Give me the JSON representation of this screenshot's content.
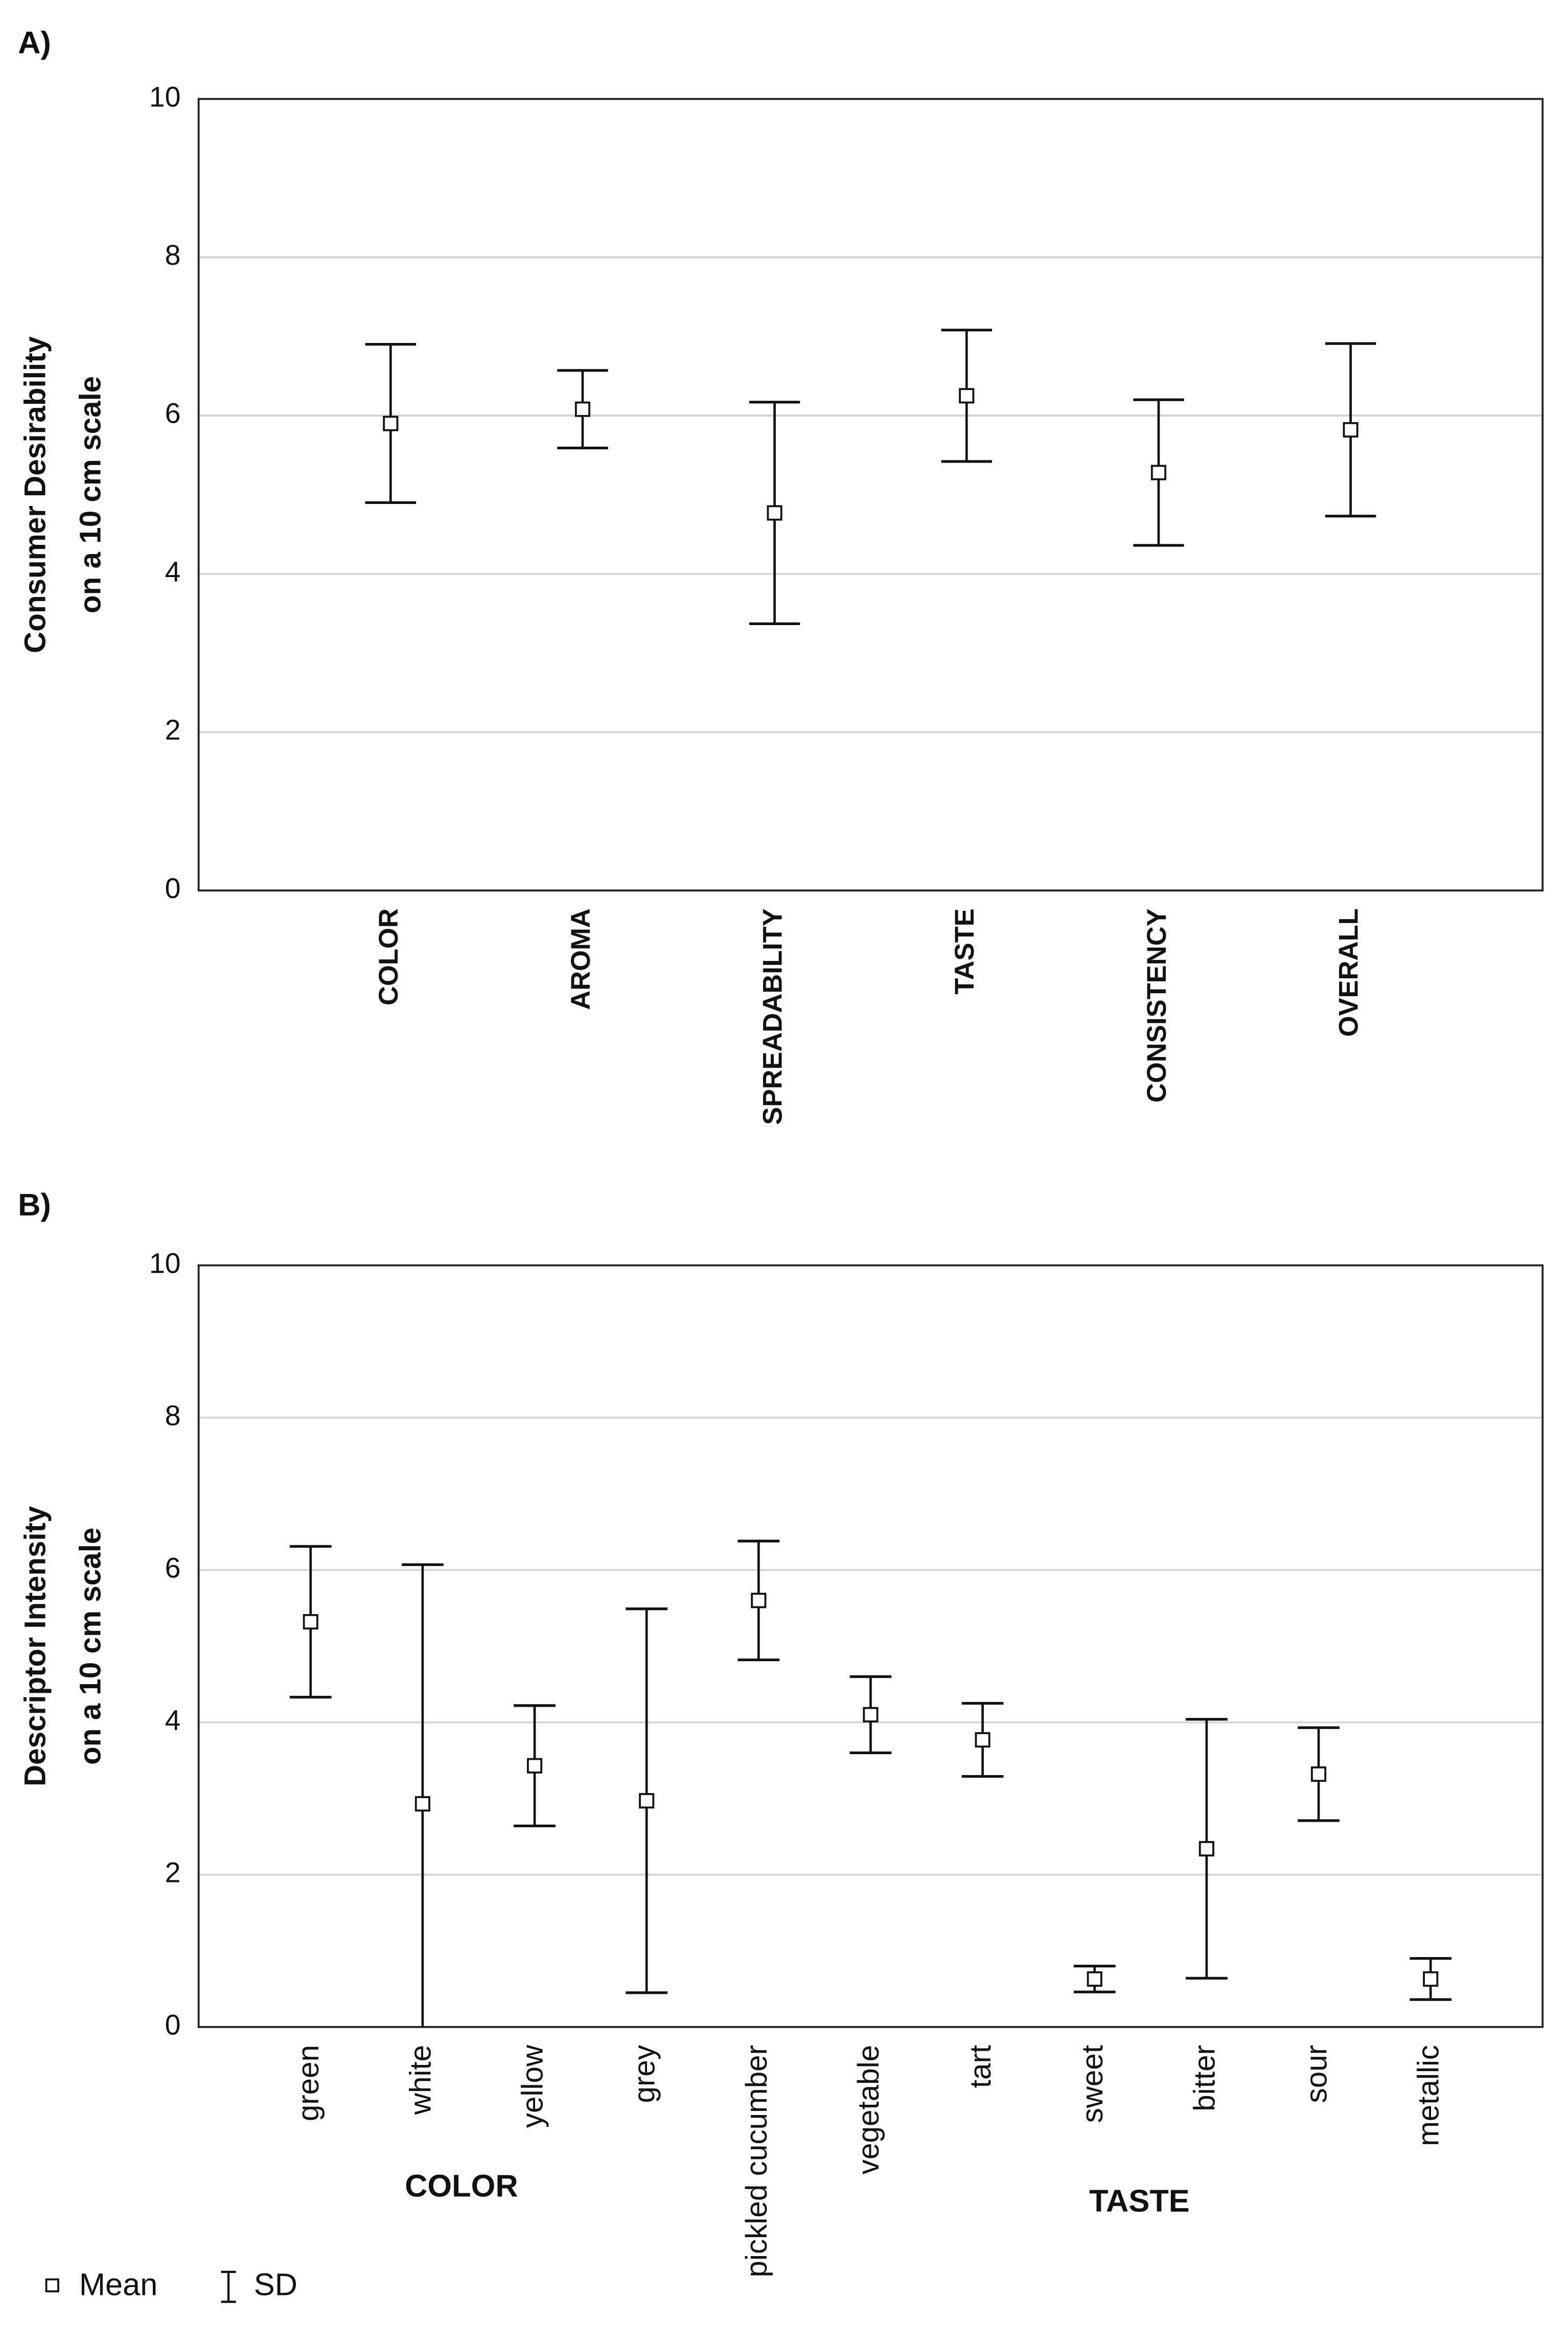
{
  "chart_data": [
    {
      "type": "errorbar",
      "panel": "A)",
      "ylabel": [
        "Consumer Desirability",
        "on a 10 cm scale"
      ],
      "categories": [
        "COLOR",
        "AROMA",
        "SPREADABILITY",
        "TASTE",
        "CONSISTENCY",
        "OVERALL"
      ],
      "values": [
        5.9,
        6.08,
        4.77,
        6.25,
        5.28,
        5.82
      ],
      "errors": [
        1.0,
        0.49,
        1.4,
        0.83,
        0.92,
        1.09
      ],
      "ylim": [
        0,
        10
      ],
      "yticks": [
        0,
        2,
        4,
        6,
        8,
        10
      ],
      "grid": true,
      "bold_categories": true
    },
    {
      "type": "errorbar",
      "panel": "B)",
      "ylabel": [
        "Descriptor Intensity",
        "on a 10 cm scale"
      ],
      "categories": [
        "green",
        "white",
        "yellow",
        "grey",
        "pickled cucumber",
        "vegetable",
        "tart",
        "sweet",
        "bitter",
        "sour",
        "metallic"
      ],
      "values": [
        5.32,
        2.93,
        3.43,
        2.97,
        5.6,
        4.1,
        3.77,
        0.63,
        2.34,
        3.32,
        0.63
      ],
      "errors": [
        0.99,
        3.14,
        0.79,
        2.52,
        0.78,
        0.5,
        0.48,
        0.17,
        1.7,
        0.61,
        0.27
      ],
      "group_labels": [
        "COLOR",
        "TASTE"
      ],
      "ylim": [
        0,
        10
      ],
      "yticks": [
        0,
        2,
        4,
        6,
        8,
        10
      ],
      "grid": true,
      "bold_categories": false
    }
  ],
  "legend": {
    "mean": "Mean",
    "sd": "SD"
  }
}
